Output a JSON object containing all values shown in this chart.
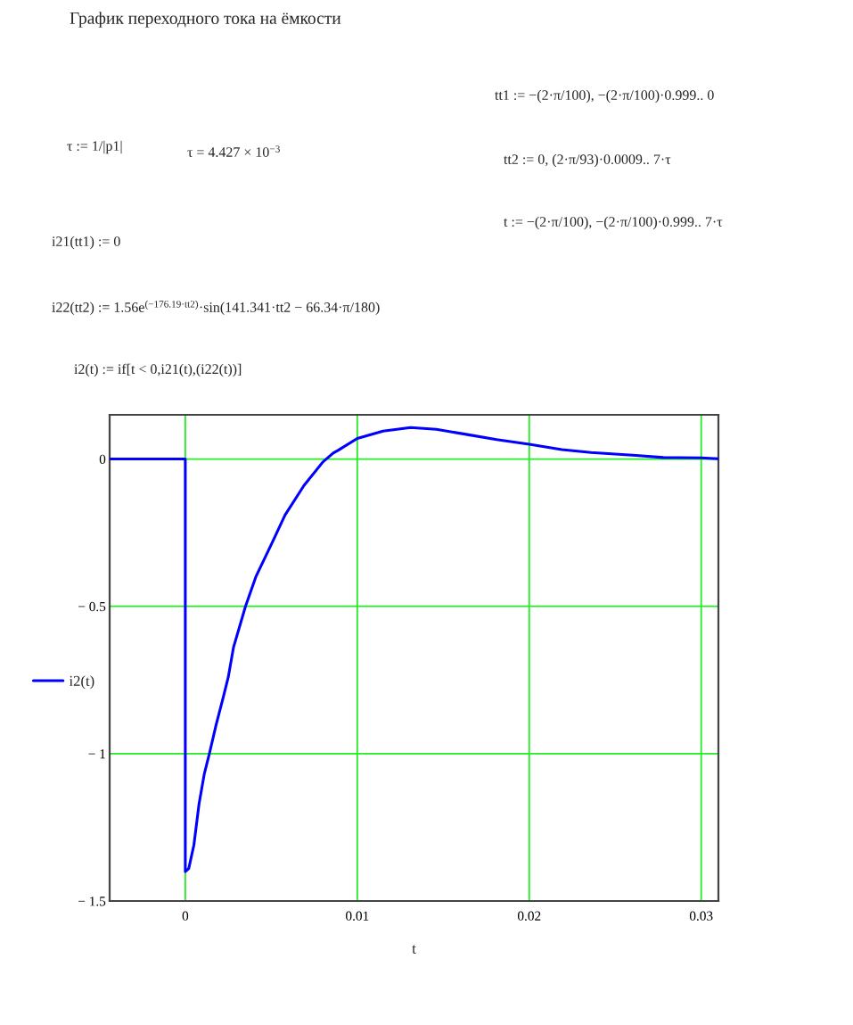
{
  "chart_data": {
    "type": "line",
    "title": "График переходного тока на ёмкости",
    "xlabel": "t",
    "annotations": [
      "tt1 := −(2·π/100), −(2·π/100)·0.999.. 0",
      "τ := 1/|p1|",
      "τ = 4.427 × 10$^{−3}$",
      "tt2 := 0, (2·π/93)·0.0009.. 7·τ",
      "t := −(2·π/100), −(2·π/100)·0.999.. 7·τ",
      "i21(tt1) := 0",
      "i22(tt2) := 1.56e$^{(−176.19·tt2)}$·sin(141.341·tt2 − 66.34·π/180)",
      "i2(t) := if[t < 0,i21(t),(i22(t))]"
    ],
    "x": [
      -0.0044,
      0,
      0,
      0.0002,
      0.0005,
      0.0008,
      0.0011,
      0.0014,
      0.0018,
      0.0022,
      0.0025,
      0.0028,
      0.0035,
      0.0041,
      0.005,
      0.0058,
      0.0069,
      0.008,
      0.0086,
      0.0089,
      0.01,
      0.0115,
      0.0131,
      0.0146,
      0.0164,
      0.0181,
      0.02,
      0.0219,
      0.0236,
      0.0262,
      0.0278,
      0.03,
      0.031
    ],
    "series": [
      {
        "name": "i2(t)",
        "color": "#0000ff",
        "values": [
          0,
          0,
          -1.4,
          -1.39,
          -1.31,
          -1.17,
          -1.07,
          -1.0,
          -0.9,
          -0.81,
          -0.74,
          -0.64,
          -0.5,
          -0.4,
          -0.29,
          -0.19,
          -0.09,
          -0.01,
          0.02,
          0.03,
          0.07,
          0.095,
          0.107,
          0.101,
          0.083,
          0.066,
          0.05,
          0.032,
          0.022,
          0.012,
          0.005,
          0.004,
          0.001
        ]
      }
    ],
    "xlim": [
      -0.0044,
      0.031
    ],
    "ylim": [
      -1.5,
      0.15
    ],
    "xticks": [
      0,
      0.01,
      0.02,
      0.03
    ],
    "yticks": [
      {
        "value": -1.5,
        "label": "− 1.5"
      },
      {
        "value": -1,
        "label": "− 1"
      },
      {
        "value": -0.5,
        "label": "− 0.5"
      },
      0
    ],
    "grid": true,
    "legend": "left",
    "line_style": "solid"
  }
}
